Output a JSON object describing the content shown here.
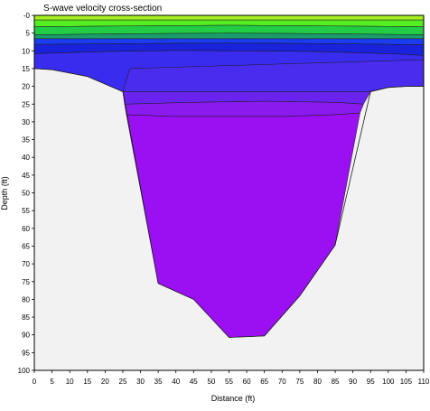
{
  "chart_data": {
    "type": "area",
    "title": "S-wave velocity cross-section",
    "xlabel": "Distance (ft)",
    "ylabel": "Depth (ft)",
    "xlim": [
      0,
      110
    ],
    "ylim": [
      0,
      100
    ],
    "y_inverted": true,
    "grid": false,
    "x_ticks": [
      0,
      5,
      10,
      15,
      20,
      25,
      30,
      35,
      40,
      45,
      50,
      55,
      60,
      65,
      70,
      75,
      80,
      85,
      90,
      95,
      100,
      105,
      110
    ],
    "y_ticks": [
      0,
      5,
      10,
      15,
      20,
      25,
      30,
      35,
      40,
      45,
      50,
      55,
      60,
      65,
      70,
      75,
      80,
      85,
      90,
      95,
      100
    ],
    "y_tick_labels": [
      "-0",
      "5",
      "10",
      "15",
      "20",
      "25",
      "30",
      "35",
      "40",
      "45",
      "50",
      "55",
      "60",
      "65",
      "70",
      "75",
      "80",
      "85",
      "90",
      "95",
      "100"
    ],
    "colors": {
      "background": "#f2f2f2",
      "plot_border": "#000000",
      "contour_line": "#1a1a1a"
    },
    "layers": [
      {
        "color": "#a6f020",
        "top": [
          [
            0,
            0
          ],
          [
            110,
            0
          ]
        ],
        "bottom": [
          [
            0,
            1.3
          ],
          [
            110,
            1.3
          ]
        ]
      },
      {
        "color": "#55ee22",
        "top": [
          [
            0,
            1.3
          ],
          [
            110,
            1.3
          ]
        ],
        "bottom": [
          [
            0,
            3.2
          ],
          [
            25,
            3.0
          ],
          [
            55,
            2.8
          ],
          [
            85,
            3.0
          ],
          [
            110,
            3.2
          ]
        ]
      },
      {
        "color": "#22cc44",
        "top": [
          [
            0,
            3.2
          ],
          [
            25,
            3.0
          ],
          [
            55,
            2.8
          ],
          [
            85,
            3.0
          ],
          [
            110,
            3.2
          ]
        ],
        "bottom": [
          [
            0,
            5.5
          ],
          [
            25,
            5.2
          ],
          [
            55,
            5.0
          ],
          [
            85,
            5.2
          ],
          [
            110,
            5.5
          ]
        ]
      },
      {
        "color": "#1c9c6c",
        "top": [
          [
            0,
            5.5
          ],
          [
            25,
            5.2
          ],
          [
            55,
            5.0
          ],
          [
            85,
            5.2
          ],
          [
            110,
            5.5
          ]
        ],
        "bottom": [
          [
            0,
            6.6
          ],
          [
            110,
            6.6
          ]
        ]
      },
      {
        "color": "#1c3cf0",
        "top": [
          [
            0,
            6.6
          ],
          [
            110,
            6.6
          ]
        ],
        "bottom": [
          [
            0,
            8.2
          ],
          [
            25,
            8.0
          ],
          [
            55,
            7.8
          ],
          [
            85,
            8.0
          ],
          [
            110,
            8.3
          ]
        ]
      },
      {
        "color": "#1a22dc",
        "top": [
          [
            0,
            8.2
          ],
          [
            25,
            8.0
          ],
          [
            55,
            7.8
          ],
          [
            85,
            8.0
          ],
          [
            110,
            8.3
          ]
        ],
        "bottom": [
          [
            0,
            10.8
          ],
          [
            20,
            10.2
          ],
          [
            40,
            9.9
          ],
          [
            60,
            10.0
          ],
          [
            80,
            10.2
          ],
          [
            100,
            10.8
          ],
          [
            110,
            11.3
          ]
        ]
      },
      {
        "color": "#3a2cee",
        "top": [
          [
            0,
            10.8
          ],
          [
            20,
            10.2
          ],
          [
            40,
            9.9
          ],
          [
            60,
            10.0
          ],
          [
            80,
            10.2
          ],
          [
            100,
            10.8
          ],
          [
            110,
            11.3
          ]
        ],
        "bottom": [
          [
            0,
            15
          ],
          [
            5,
            15.3
          ],
          [
            15,
            17.2
          ],
          [
            25,
            21.5
          ],
          [
            27,
            15
          ],
          [
            95,
            15
          ],
          [
            110,
            12.5
          ]
        ]
      },
      {
        "color": "#4a2cee",
        "top": [
          [
            27,
            15
          ],
          [
            110,
            12.5
          ]
        ],
        "bottom": [
          [
            25,
            21.5
          ],
          [
            95,
            21.5
          ],
          [
            100,
            20.3
          ],
          [
            105,
            20
          ],
          [
            110,
            20
          ]
        ]
      },
      {
        "color": "#6a22ee",
        "top": [
          [
            25,
            21.5
          ],
          [
            95,
            21.5
          ]
        ],
        "bottom": [
          [
            25.5,
            25
          ],
          [
            45,
            24.5
          ],
          [
            65,
            24.2
          ],
          [
            85,
            24.5
          ],
          [
            93,
            25
          ]
        ]
      },
      {
        "color": "#8a1aee",
        "top": [
          [
            25.5,
            25
          ],
          [
            45,
            24.5
          ],
          [
            65,
            24.2
          ],
          [
            85,
            24.5
          ],
          [
            93,
            25
          ]
        ],
        "bottom": [
          [
            26,
            28
          ],
          [
            40,
            28.5
          ],
          [
            55,
            28.5
          ],
          [
            70,
            28.5
          ],
          [
            85,
            28
          ],
          [
            92,
            27.5
          ]
        ]
      },
      {
        "color": "#9a10f2",
        "top": [
          [
            26,
            28
          ],
          [
            40,
            28.5
          ],
          [
            55,
            28.5
          ],
          [
            70,
            28.5
          ],
          [
            85,
            28
          ],
          [
            92,
            27.5
          ]
        ],
        "bottom": [
          [
            35,
            75.5
          ],
          [
            45,
            80
          ],
          [
            55,
            90.7
          ],
          [
            65,
            90.3
          ],
          [
            75,
            79
          ],
          [
            85,
            64.7
          ],
          [
            92,
            27.5
          ]
        ]
      }
    ],
    "model_outline": [
      [
        0,
        15
      ],
      [
        5,
        15.3
      ],
      [
        15,
        17.2
      ],
      [
        25,
        21.5
      ],
      [
        35,
        75.5
      ],
      [
        45,
        80
      ],
      [
        55,
        90.7
      ],
      [
        65,
        90.3
      ],
      [
        75,
        79
      ],
      [
        85,
        64.7
      ],
      [
        95,
        21.5
      ],
      [
        100,
        20.3
      ],
      [
        105,
        20
      ],
      [
        110,
        20
      ]
    ]
  }
}
